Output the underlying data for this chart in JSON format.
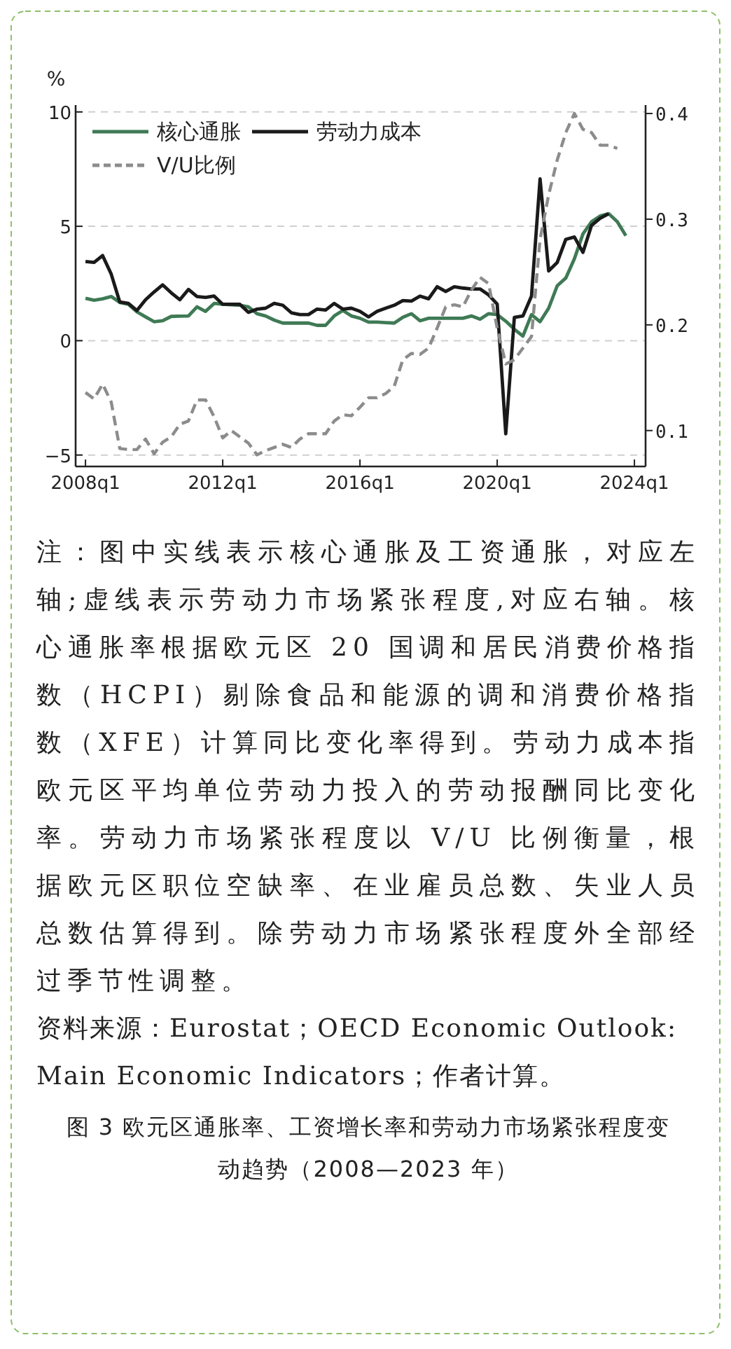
{
  "chart_data": {
    "type": "line",
    "title": "图 3  欧元区通胀率、工资增长率和劳动力市场紧张程度变动趋势（2008—2023 年）",
    "ylabel": "%",
    "categories": [
      "2008q1",
      null,
      null,
      null,
      null,
      null,
      null,
      null,
      null,
      null,
      null,
      null,
      null,
      null,
      null,
      null,
      "2012q1",
      null,
      null,
      null,
      null,
      null,
      null,
      null,
      null,
      null,
      null,
      null,
      null,
      null,
      null,
      null,
      "2016q1",
      null,
      null,
      null,
      null,
      null,
      null,
      null,
      null,
      null,
      null,
      null,
      null,
      null,
      null,
      null,
      "2020q1",
      null,
      null,
      null,
      null,
      null,
      null,
      null,
      null,
      null,
      null,
      null,
      null,
      null,
      null,
      null,
      "2024q1"
    ],
    "ylim": [
      -5.5,
      10.3
    ],
    "yticks": [
      -5,
      0,
      5,
      10
    ],
    "y2lim": [
      0.066,
      0.408
    ],
    "y2ticks": [
      0.1,
      0.2,
      0.3,
      0.4
    ],
    "grid": "y",
    "legend": "top left",
    "marker": "none",
    "series": [
      {
        "name": "核心通胀",
        "color": "#3f7a55",
        "line_style": "solid",
        "values": [
          1.85,
          1.77,
          1.83,
          1.93,
          1.67,
          1.59,
          1.26,
          1.04,
          0.83,
          0.87,
          1.06,
          1.07,
          1.08,
          1.48,
          1.28,
          1.63,
          1.59,
          1.57,
          1.55,
          1.48,
          1.18,
          1.08,
          0.9,
          0.77,
          0.77,
          0.77,
          0.77,
          0.67,
          0.67,
          1.08,
          1.32,
          1.08,
          0.98,
          0.81,
          0.81,
          0.79,
          0.77,
          1.02,
          1.18,
          0.87,
          0.98,
          0.98,
          0.98,
          0.98,
          0.98,
          1.08,
          0.94,
          1.18,
          1.14,
          0.85,
          0.5,
          0.2,
          1.14,
          0.83,
          1.42,
          2.4,
          2.74,
          3.58,
          4.67,
          5.2,
          5.45,
          5.55,
          5.2,
          4.59,
          null
        ]
      },
      {
        "name": "劳动力成本",
        "color": "#1a1a1a",
        "line_style": "solid",
        "values": [
          3.46,
          3.42,
          3.72,
          2.91,
          1.69,
          1.63,
          1.32,
          1.79,
          2.13,
          2.44,
          2.09,
          1.79,
          2.24,
          1.93,
          1.89,
          1.95,
          1.59,
          1.59,
          1.59,
          1.24,
          1.38,
          1.42,
          1.63,
          1.55,
          1.22,
          1.14,
          1.14,
          1.38,
          1.34,
          1.63,
          1.38,
          1.42,
          1.28,
          1.04,
          1.28,
          1.42,
          1.55,
          1.75,
          1.73,
          1.95,
          1.83,
          2.36,
          2.15,
          2.36,
          2.3,
          2.26,
          2.26,
          2.0,
          1.6,
          -4.07,
          1.02,
          1.08,
          1.95,
          7.07,
          3.05,
          3.42,
          4.43,
          4.53,
          3.86,
          5.04,
          5.35,
          5.55,
          null,
          null,
          null
        ]
      },
      {
        "name": "V/U比例",
        "color": "#8c8c8c",
        "line_style": "dashed",
        "axis": "y2",
        "values": [
          0.136,
          0.13,
          0.144,
          0.127,
          0.083,
          0.082,
          0.082,
          0.092,
          0.078,
          0.089,
          0.094,
          0.106,
          0.109,
          0.129,
          0.129,
          0.113,
          0.093,
          0.1,
          0.094,
          0.088,
          0.077,
          0.081,
          0.084,
          0.087,
          0.084,
          0.092,
          0.097,
          0.097,
          0.097,
          0.109,
          0.115,
          0.114,
          0.122,
          0.131,
          0.131,
          0.135,
          0.142,
          0.167,
          0.173,
          0.172,
          0.178,
          0.197,
          0.217,
          0.219,
          0.217,
          0.233,
          0.245,
          0.239,
          0.197,
          0.163,
          0.167,
          0.178,
          0.189,
          0.281,
          0.323,
          0.356,
          0.382,
          0.4,
          0.385,
          0.382,
          0.37,
          0.37,
          0.367,
          null,
          null
        ]
      }
    ],
    "annotations": [
      "注：图中实线表示核心通胀及工资通胀，对应左轴;虚线表示劳动力市场紧张程度,对应右轴。核心通胀率根据欧元区 20 国调和居民消费价格指数（HCPI）剔除食品和能源的调和消费价格指数（XFE）计算同比变化率得到。劳动力成本指欧元区平均单位劳动力投入的劳动报酬同比变化率。劳动力市场紧张程度以 V/U 比例衡量，根据欧元区职位空缺率、在业雇员总数、失业人员总数估算得到。除劳动力市场紧张程度外全部经过季节性调整。",
      "资料来源：Eurostat；OECD Economic Outlook: Main Economic Indicators；作者计算。"
    ]
  }
}
